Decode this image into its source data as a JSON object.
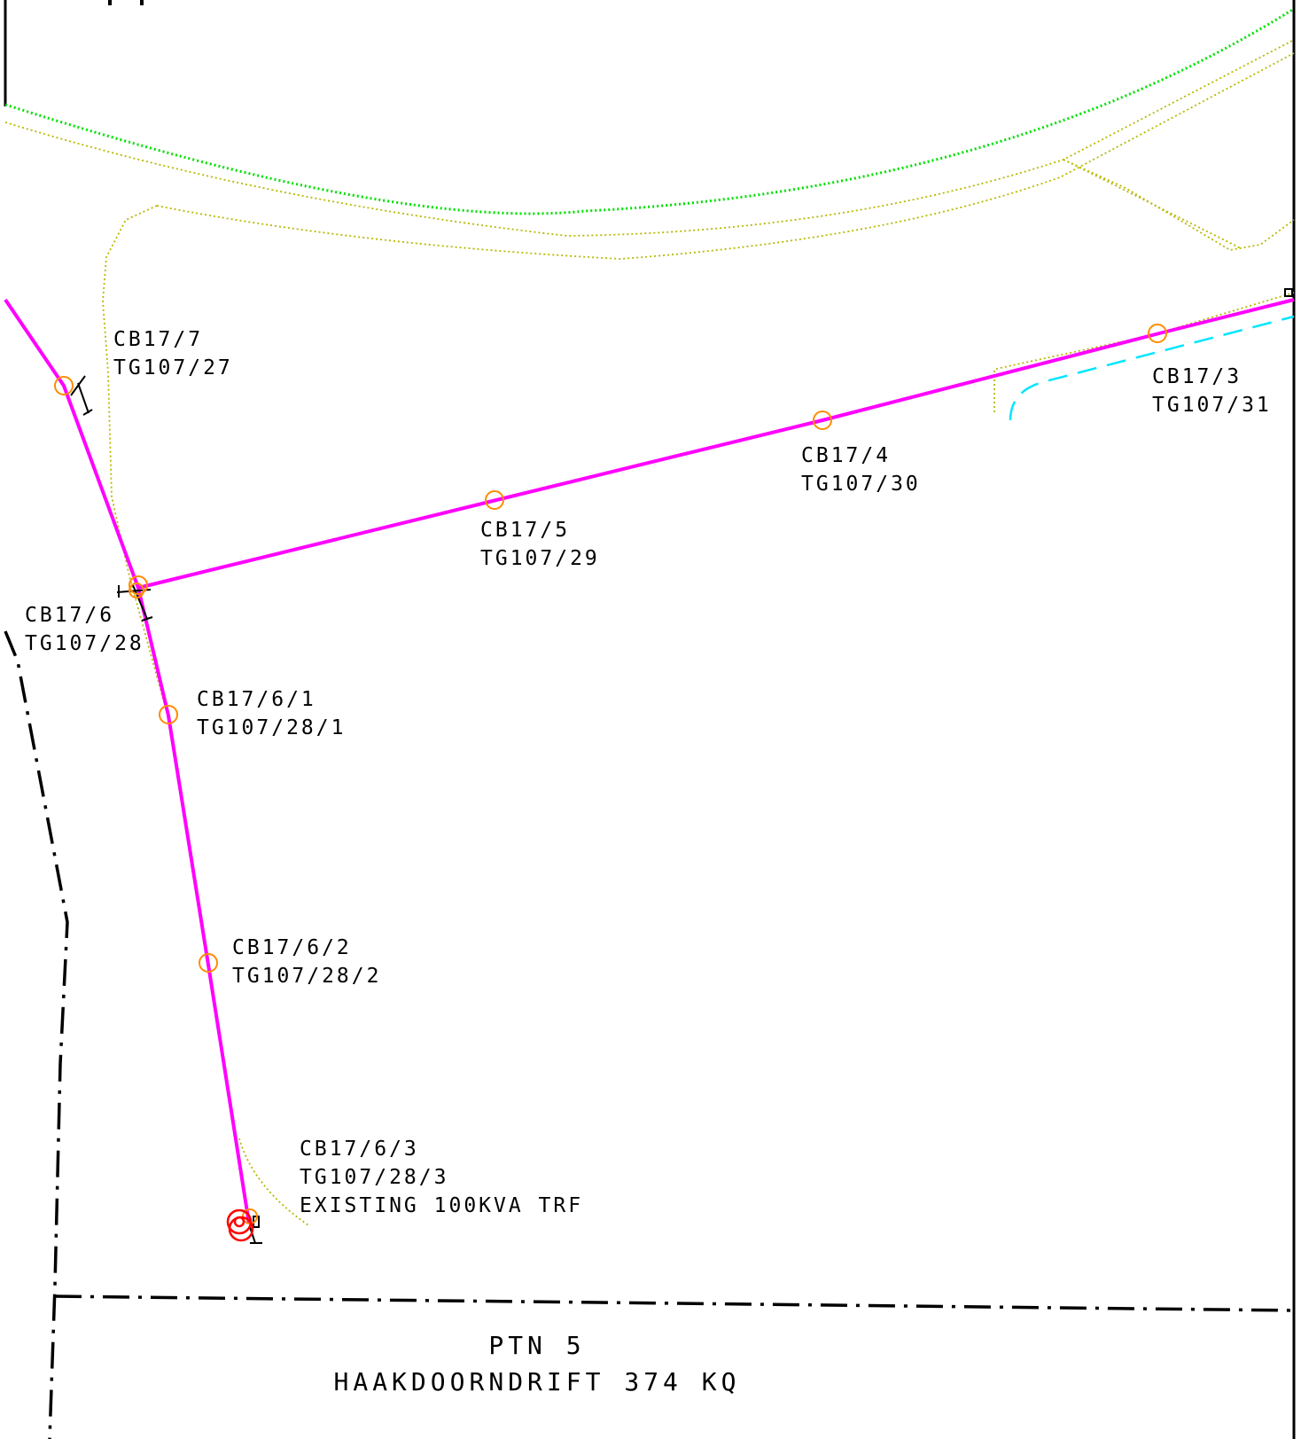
{
  "colors": {
    "power_line": "#ff00ff",
    "pole_marker": "#ff8c00",
    "transformer_marker": "#ff0000",
    "road_edge": "#b8b800",
    "road_centerline": "#00e000",
    "water_dashed": "#00e5ff",
    "boundary": "#000000"
  },
  "poles": [
    {
      "line1": "CB17/7",
      "line2": "TG107/27"
    },
    {
      "line1": "CB17/6",
      "line2": "TG107/28"
    },
    {
      "line1": "CB17/5",
      "line2": "TG107/29"
    },
    {
      "line1": "CB17/4",
      "line2": "TG107/30"
    },
    {
      "line1": "CB17/3",
      "line2": "TG107/31"
    },
    {
      "line1": "CB17/6/1",
      "line2": "TG107/28/1"
    },
    {
      "line1": "CB17/6/2",
      "line2": "TG107/28/2"
    },
    {
      "line1": "CB17/6/3",
      "line2": "TG107/28/3",
      "line3": "EXISTING 100KVA TRF"
    }
  ],
  "property": {
    "portion": "PTN 5",
    "farm": "HAAKDOORNDRIFT 374 KQ"
  }
}
